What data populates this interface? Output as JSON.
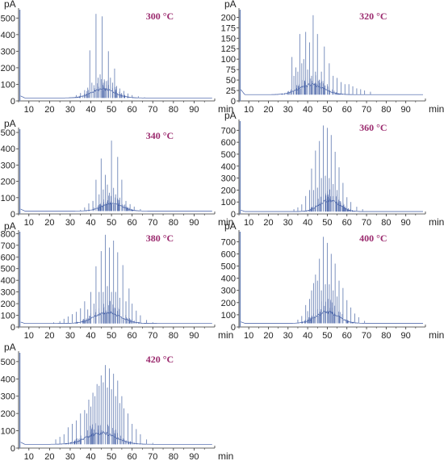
{
  "chart_data": [
    {
      "type": "line",
      "title": "300 °C",
      "ylabel": "pA",
      "xlabel": "min",
      "xlim": [
        5,
        100
      ],
      "ylim": [
        0,
        560
      ],
      "xticks": [
        10,
        20,
        30,
        40,
        50,
        60,
        70,
        80,
        90
      ],
      "yticks": [
        0,
        100,
        200,
        300,
        400,
        500
      ],
      "baseline": 18,
      "envelope": {
        "center": 46,
        "width": 8,
        "height": 45
      },
      "peaks": [
        [
          30,
          22
        ],
        [
          33,
          35
        ],
        [
          35,
          48
        ],
        [
          37,
          65
        ],
        [
          38.5,
          80
        ],
        [
          39.5,
          305
        ],
        [
          40.5,
          110
        ],
        [
          41.5,
          95
        ],
        [
          42.5,
          525
        ],
        [
          43.5,
          140
        ],
        [
          44.5,
          160
        ],
        [
          45.5,
          510
        ],
        [
          46.5,
          130
        ],
        [
          47.5,
          120
        ],
        [
          48.5,
          300
        ],
        [
          49.5,
          140
        ],
        [
          50.5,
          110
        ],
        [
          51.5,
          195
        ],
        [
          52.5,
          90
        ],
        [
          54,
          75
        ],
        [
          56,
          60
        ],
        [
          58,
          45
        ],
        [
          60,
          35
        ],
        [
          63,
          28
        ],
        [
          66,
          22
        ]
      ]
    },
    {
      "type": "line",
      "title": "320 °C",
      "ylabel": "pA",
      "xlabel": "min",
      "xlim": [
        5,
        100
      ],
      "ylim": [
        0,
        222
      ],
      "xticks": [
        10,
        20,
        30,
        40,
        50,
        60,
        70,
        80,
        90
      ],
      "yticks": [
        0,
        25,
        50,
        75,
        100,
        125,
        150,
        175,
        200
      ],
      "baseline": 15,
      "envelope": {
        "center": 42,
        "width": 9,
        "height": 20
      },
      "peaks": [
        [
          30,
          22
        ],
        [
          32,
          105
        ],
        [
          33,
          60
        ],
        [
          34,
          80
        ],
        [
          35,
          70
        ],
        [
          36,
          160
        ],
        [
          37,
          90
        ],
        [
          38,
          100
        ],
        [
          39,
          165
        ],
        [
          40,
          75
        ],
        [
          41,
          140
        ],
        [
          42,
          60
        ],
        [
          42.8,
          205
        ],
        [
          44,
          70
        ],
        [
          45,
          160
        ],
        [
          46,
          50
        ],
        [
          47,
          70
        ],
        [
          48.5,
          130
        ],
        [
          50,
          40
        ],
        [
          51,
          90
        ],
        [
          53,
          60
        ],
        [
          55,
          55
        ],
        [
          57,
          45
        ],
        [
          59,
          40
        ],
        [
          61,
          40
        ],
        [
          63,
          35
        ],
        [
          65,
          30
        ],
        [
          67,
          28
        ],
        [
          69,
          25
        ],
        [
          72,
          22
        ]
      ]
    },
    {
      "type": "line",
      "title": "340 °C",
      "ylabel": "pA",
      "xlabel": "min",
      "xlim": [
        5,
        100
      ],
      "ylim": [
        0,
        530
      ],
      "xticks": [
        10,
        20,
        30,
        40,
        50,
        60,
        70,
        80,
        90
      ],
      "yticks": [
        0,
        100,
        200,
        300,
        400,
        500
      ],
      "baseline": 18,
      "envelope": {
        "center": 50,
        "width": 7,
        "height": 38
      },
      "peaks": [
        [
          35,
          25
        ],
        [
          37,
          40
        ],
        [
          39,
          65
        ],
        [
          41,
          80
        ],
        [
          42.5,
          210
        ],
        [
          44,
          120
        ],
        [
          45,
          340
        ],
        [
          46,
          150
        ],
        [
          47,
          240
        ],
        [
          48,
          180
        ],
        [
          49,
          130
        ],
        [
          50,
          450
        ],
        [
          51,
          160
        ],
        [
          52,
          120
        ],
        [
          53,
          350
        ],
        [
          54,
          100
        ],
        [
          55,
          210
        ],
        [
          57,
          80
        ],
        [
          59,
          60
        ],
        [
          61,
          45
        ],
        [
          64,
          30
        ]
      ]
    },
    {
      "type": "line",
      "title": "360 °C",
      "ylabel": "pA",
      "xlabel": "min",
      "xlim": [
        5,
        100
      ],
      "ylim": [
        0,
        790
      ],
      "xticks": [
        10,
        20,
        30,
        40,
        50,
        60,
        70,
        80,
        90
      ],
      "yticks": [
        0,
        100,
        200,
        300,
        400,
        500,
        600,
        700
      ],
      "baseline": 20,
      "envelope": {
        "center": 51,
        "width": 7,
        "height": 80
      },
      "peaks": [
        [
          33,
          40
        ],
        [
          35,
          55
        ],
        [
          37,
          80
        ],
        [
          39,
          150
        ],
        [
          41,
          200
        ],
        [
          42,
          380
        ],
        [
          43,
          200
        ],
        [
          44,
          530
        ],
        [
          45,
          220
        ],
        [
          46,
          610
        ],
        [
          47,
          300
        ],
        [
          48,
          740
        ],
        [
          49,
          320
        ],
        [
          50,
          720
        ],
        [
          51,
          300
        ],
        [
          52,
          660
        ],
        [
          53,
          250
        ],
        [
          54,
          520
        ],
        [
          55,
          200
        ],
        [
          56,
          390
        ],
        [
          58,
          260
        ],
        [
          60,
          140
        ],
        [
          62,
          100
        ],
        [
          65,
          60
        ],
        [
          68,
          40
        ]
      ]
    },
    {
      "type": "line",
      "title": "380 °C",
      "ylabel": "pA",
      "xlabel": "min",
      "xlim": [
        5,
        100
      ],
      "ylim": [
        0,
        830
      ],
      "xticks": [
        10,
        20,
        30,
        40,
        50,
        60,
        70,
        80,
        90
      ],
      "yticks": [
        0,
        100,
        200,
        300,
        400,
        500,
        600,
        700,
        800
      ],
      "baseline": 30,
      "envelope": {
        "center": 48,
        "width": 9,
        "height": 80
      },
      "peaks": [
        [
          22,
          40
        ],
        [
          25,
          50
        ],
        [
          27,
          70
        ],
        [
          29,
          90
        ],
        [
          31,
          110
        ],
        [
          33,
          130
        ],
        [
          35,
          160
        ],
        [
          37,
          220
        ],
        [
          38.5,
          150
        ],
        [
          40,
          300
        ],
        [
          41.5,
          200
        ],
        [
          42.5,
          520
        ],
        [
          44,
          300
        ],
        [
          45,
          650
        ],
        [
          46,
          300
        ],
        [
          47,
          790
        ],
        [
          48,
          350
        ],
        [
          49,
          680
        ],
        [
          50,
          300
        ],
        [
          51,
          740
        ],
        [
          52,
          300
        ],
        [
          53,
          640
        ],
        [
          54,
          250
        ],
        [
          55.5,
          530
        ],
        [
          57,
          220
        ],
        [
          58.5,
          330
        ],
        [
          60,
          200
        ],
        [
          62,
          140
        ],
        [
          64,
          100
        ],
        [
          67,
          60
        ],
        [
          70,
          40
        ]
      ]
    },
    {
      "type": "line",
      "title": "400 °C",
      "ylabel": "pA",
      "xlabel": "min",
      "xlim": [
        5,
        100
      ],
      "ylim": [
        0,
        795
      ],
      "xticks": [
        10,
        20,
        30,
        40,
        50,
        60,
        70,
        80,
        90
      ],
      "yticks": [
        0,
        100,
        200,
        300,
        400,
        500,
        600,
        700
      ],
      "baseline": 30,
      "envelope": {
        "center": 50,
        "width": 8,
        "height": 80
      },
      "peaks": [
        [
          35,
          60
        ],
        [
          37,
          90
        ],
        [
          39,
          180
        ],
        [
          40,
          130
        ],
        [
          41,
          230
        ],
        [
          42,
          300
        ],
        [
          43,
          360
        ],
        [
          44,
          430
        ],
        [
          45,
          380
        ],
        [
          46,
          560
        ],
        [
          47,
          300
        ],
        [
          48,
          740
        ],
        [
          49,
          350
        ],
        [
          50,
          690
        ],
        [
          51,
          350
        ],
        [
          52,
          600
        ],
        [
          53,
          300
        ],
        [
          54,
          520
        ],
        [
          55,
          250
        ],
        [
          56,
          380
        ],
        [
          58,
          320
        ],
        [
          60,
          220
        ],
        [
          62,
          160
        ],
        [
          64,
          110
        ],
        [
          66,
          80
        ],
        [
          69,
          50
        ]
      ]
    },
    {
      "type": "line",
      "title": "420 °C",
      "ylabel": "pA",
      "xlabel": "min",
      "xlim": [
        5,
        100
      ],
      "ylim": [
        0,
        560
      ],
      "xticks": [
        10,
        20,
        30,
        40,
        50,
        60,
        70,
        80,
        90
      ],
      "yticks": [
        0,
        100,
        200,
        300,
        400,
        500
      ],
      "baseline": 22,
      "envelope": {
        "center": 45,
        "width": 10,
        "height": 55
      },
      "peaks": [
        [
          23,
          50
        ],
        [
          25,
          65
        ],
        [
          27,
          80
        ],
        [
          29,
          120
        ],
        [
          31,
          140
        ],
        [
          33,
          160
        ],
        [
          35,
          200
        ],
        [
          37,
          220
        ],
        [
          38,
          200
        ],
        [
          39,
          280
        ],
        [
          40,
          240
        ],
        [
          41,
          320
        ],
        [
          42,
          300
        ],
        [
          43,
          370
        ],
        [
          44,
          360
        ],
        [
          45,
          420
        ],
        [
          46,
          380
        ],
        [
          47,
          480
        ],
        [
          48,
          350
        ],
        [
          49,
          460
        ],
        [
          50,
          340
        ],
        [
          51,
          430
        ],
        [
          52,
          300
        ],
        [
          53,
          390
        ],
        [
          54,
          260
        ],
        [
          55,
          300
        ],
        [
          56,
          230
        ],
        [
          58,
          200
        ],
        [
          60,
          140
        ],
        [
          62,
          110
        ],
        [
          64,
          80
        ],
        [
          67,
          50
        ],
        [
          70,
          30
        ]
      ]
    }
  ]
}
